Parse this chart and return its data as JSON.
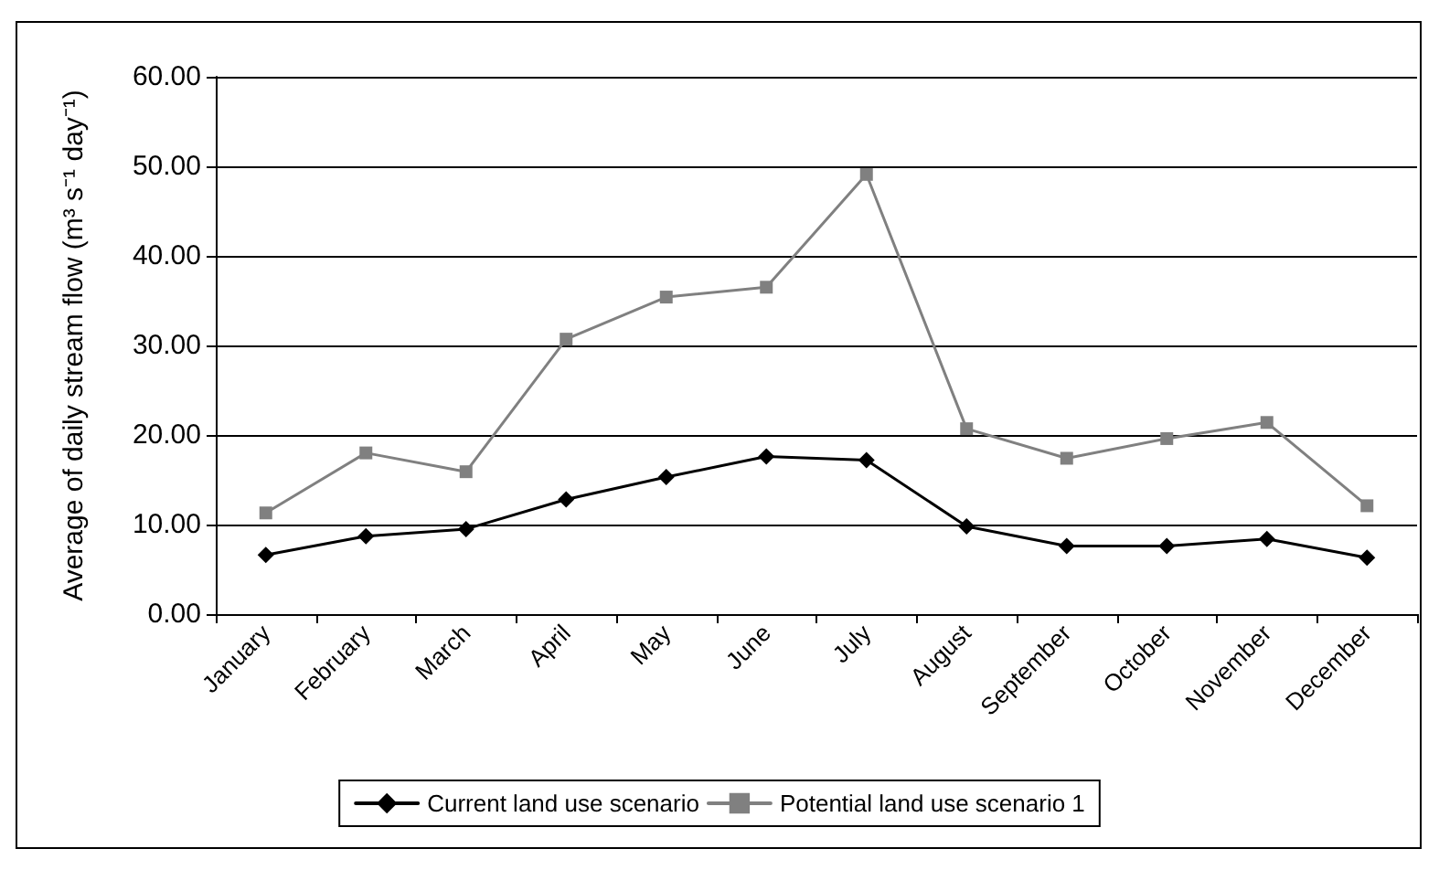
{
  "chart_data": {
    "type": "line",
    "ylabel": "Average of daily stream flow (m³ s⁻¹ day⁻¹)",
    "categories": [
      "January",
      "February",
      "March",
      "April",
      "May",
      "June",
      "July",
      "August",
      "September",
      "October",
      "November",
      "December"
    ],
    "series": [
      {
        "name": "Current land use scenario",
        "color": "#000000",
        "marker": "diamond",
        "values": [
          6.6,
          8.7,
          9.5,
          12.8,
          15.3,
          17.6,
          17.2,
          9.8,
          7.6,
          7.6,
          8.4,
          6.3
        ]
      },
      {
        "name": "Potential land use scenario 1",
        "color": "#808080",
        "marker": "square",
        "values": [
          11.3,
          18.0,
          15.9,
          30.7,
          35.4,
          36.5,
          49.1,
          20.7,
          17.4,
          19.6,
          21.4,
          12.1
        ]
      }
    ],
    "ylim": [
      0,
      60
    ],
    "yticks": [
      {
        "value": 0,
        "label": "0.00"
      },
      {
        "value": 10,
        "label": "10.00"
      },
      {
        "value": 20,
        "label": "20.00"
      },
      {
        "value": 30,
        "label": "30.00"
      },
      {
        "value": 40,
        "label": "40.00"
      },
      {
        "value": 50,
        "label": "50.00"
      },
      {
        "value": 60,
        "label": "60.00"
      }
    ],
    "grid": "y",
    "legend": "bottom",
    "line_style": "solid"
  }
}
